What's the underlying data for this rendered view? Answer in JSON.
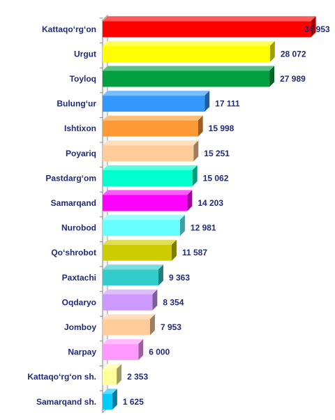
{
  "chart_data": {
    "type": "bar",
    "orientation": "horizontal",
    "style": "3d",
    "title": "",
    "xlabel": "",
    "ylabel": "",
    "grid": false,
    "legend": "none",
    "categories": [
      "Kattaqo‘rg‘on",
      "Urgut",
      "Toyloq",
      "Bulung‘ur",
      "Ishtixon",
      "Poyariq",
      "Pastdarg‘om",
      "Samarqand",
      "Nurobod",
      "Qo‘shrobot",
      "Paxtachi",
      "Oqdaryo",
      "Jomboy",
      "Narpay",
      "Kattaqo‘rg‘on sh.",
      "Samarqand sh."
    ],
    "values": [
      34953,
      28072,
      27989,
      17111,
      15998,
      15251,
      15062,
      14203,
      12981,
      11587,
      9363,
      8354,
      7953,
      6000,
      2353,
      1625
    ],
    "value_labels": [
      "34 953",
      "28 072",
      "27 989",
      "17 111",
      "15 998",
      "15 251",
      "15 062",
      "14 203",
      "12 981",
      "11 587",
      "9 363",
      "8 354",
      "7 953",
      "6 000",
      "2 353",
      "1 625"
    ],
    "colors": [
      "#ff0000",
      "#ffff00",
      "#00a040",
      "#3399ff",
      "#ff9933",
      "#ffcc99",
      "#00ffcc",
      "#ff00ff",
      "#66ffff",
      "#cccc00",
      "#33cccc",
      "#cc99ff",
      "#ffcc99",
      "#ff99ff",
      "#ffff99",
      "#00ccff"
    ],
    "xlim": [
      0,
      35000
    ]
  }
}
